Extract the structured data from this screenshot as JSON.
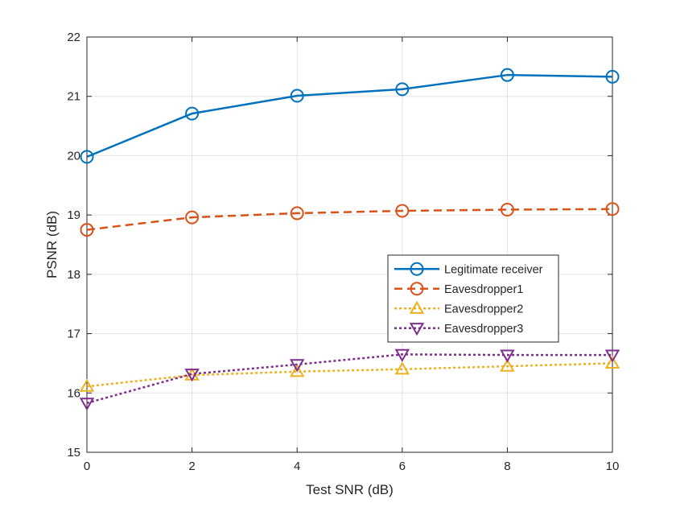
{
  "chart_data": {
    "type": "line",
    "title": "",
    "xlabel": "Test SNR (dB)",
    "ylabel": "PSNR (dB)",
    "x": [
      0,
      2,
      4,
      6,
      8,
      10
    ],
    "xlim": [
      0,
      10
    ],
    "ylim": [
      15,
      22
    ],
    "xticks": [
      "0",
      "2",
      "4",
      "6",
      "8",
      "10"
    ],
    "yticks": [
      "15",
      "16",
      "17",
      "18",
      "19",
      "20",
      "21",
      "22"
    ],
    "grid": true,
    "legend_position": "center-right",
    "series": [
      {
        "name": "Legitimate receiver",
        "values": [
          19.98,
          20.71,
          21.01,
          21.12,
          21.36,
          21.33
        ],
        "color": "#0072BD",
        "dash": "solid",
        "marker": "circle"
      },
      {
        "name": "Eavesdropper1",
        "values": [
          18.75,
          18.96,
          19.03,
          19.07,
          19.09,
          19.1
        ],
        "color": "#D95319",
        "dash": "dashed",
        "marker": "circle"
      },
      {
        "name": "Eavesdropper2",
        "values": [
          16.11,
          16.3,
          16.36,
          16.4,
          16.45,
          16.5
        ],
        "color": "#EDB120",
        "dash": "dotted",
        "marker": "triangle-up"
      },
      {
        "name": "Eavesdropper3",
        "values": [
          15.83,
          16.32,
          16.48,
          16.65,
          16.64,
          16.64
        ],
        "color": "#7E2F8E",
        "dash": "dotted",
        "marker": "triangle-down"
      }
    ]
  }
}
